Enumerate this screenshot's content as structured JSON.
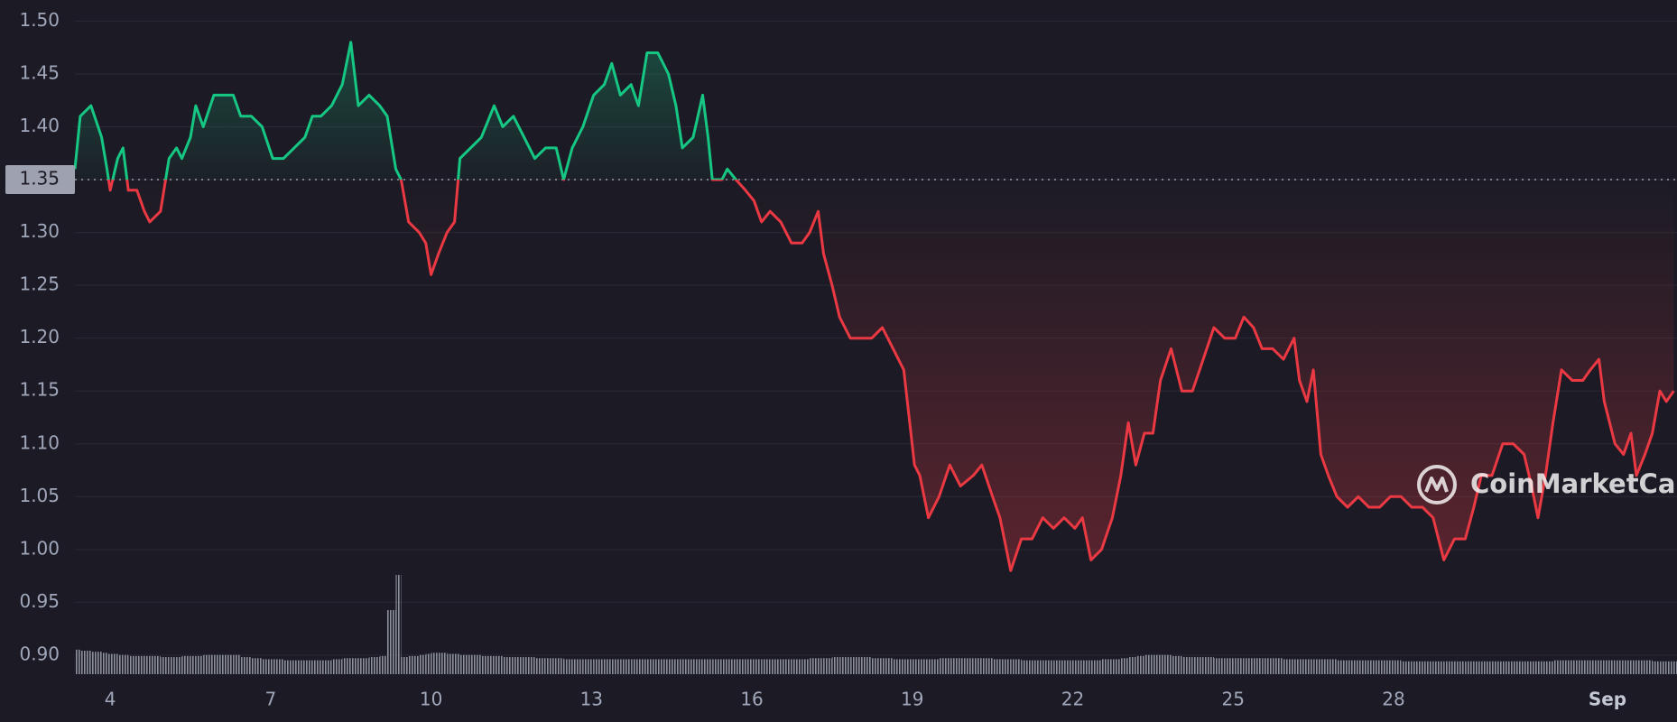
{
  "chart_data": {
    "type": "line",
    "x": [
      3.34,
      3.44,
      3.64,
      3.84,
      3.94,
      4.0,
      4.14,
      4.24,
      4.34,
      4.5,
      4.64,
      4.74,
      4.94,
      5.1,
      5.24,
      5.34,
      5.5,
      5.6,
      5.74,
      5.94,
      6.14,
      6.3,
      6.44,
      6.64,
      6.84,
      7.04,
      7.24,
      7.44,
      7.64,
      7.78,
      7.94,
      8.14,
      8.34,
      8.5,
      8.64,
      8.84,
      9.04,
      9.18,
      9.34,
      9.44,
      9.58,
      9.78,
      9.9,
      10.0,
      10.14,
      10.3,
      10.44,
      10.54,
      10.74,
      10.94,
      11.18,
      11.34,
      11.54,
      11.74,
      11.94,
      12.14,
      12.34,
      12.48,
      12.64,
      12.84,
      13.04,
      13.24,
      13.38,
      13.54,
      13.74,
      13.88,
      14.04,
      14.24,
      14.44,
      14.58,
      14.7,
      14.9,
      15.08,
      15.18,
      15.26,
      15.44,
      15.54,
      15.7,
      15.88,
      16.04,
      16.18,
      16.34,
      16.54,
      16.74,
      16.94,
      17.08,
      17.24,
      17.34,
      17.5,
      17.64,
      17.84,
      18.04,
      18.24,
      18.44,
      18.64,
      18.84,
      19.04,
      19.14,
      19.3,
      19.5,
      19.7,
      19.9,
      20.14,
      20.3,
      20.5,
      20.64,
      20.84,
      21.04,
      21.24,
      21.44,
      21.64,
      21.84,
      22.04,
      22.18,
      22.34,
      22.54,
      22.74,
      22.9,
      23.04,
      23.18,
      23.34,
      23.5,
      23.64,
      23.84,
      24.04,
      24.24,
      24.44,
      24.64,
      24.84,
      25.04,
      25.2,
      25.38,
      25.54,
      25.74,
      25.94,
      26.14,
      26.24,
      26.38,
      26.5,
      26.64,
      26.78,
      26.94,
      27.14,
      27.34,
      27.54,
      27.74,
      27.94,
      28.14,
      28.34,
      28.54,
      28.74,
      28.94,
      29.14,
      29.34,
      29.5,
      29.64,
      29.84,
      30.04,
      30.24,
      30.44,
      30.58,
      30.7,
      30.84,
      30.98,
      31.14,
      31.34,
      31.54,
      31.68,
      31.84,
      31.94,
      32.14,
      32.3,
      32.44,
      32.54,
      32.7,
      32.84,
      32.98,
      33.1,
      33.24
    ],
    "values": [
      1.36,
      1.41,
      1.42,
      1.39,
      1.36,
      1.34,
      1.37,
      1.38,
      1.34,
      1.34,
      1.32,
      1.31,
      1.32,
      1.37,
      1.38,
      1.37,
      1.39,
      1.42,
      1.4,
      1.43,
      1.43,
      1.43,
      1.41,
      1.41,
      1.4,
      1.37,
      1.37,
      1.38,
      1.39,
      1.41,
      1.41,
      1.42,
      1.44,
      1.48,
      1.42,
      1.43,
      1.42,
      1.41,
      1.36,
      1.35,
      1.31,
      1.3,
      1.29,
      1.26,
      1.28,
      1.3,
      1.31,
      1.37,
      1.38,
      1.39,
      1.42,
      1.4,
      1.41,
      1.39,
      1.37,
      1.38,
      1.38,
      1.35,
      1.38,
      1.4,
      1.43,
      1.44,
      1.46,
      1.43,
      1.44,
      1.42,
      1.47,
      1.47,
      1.45,
      1.42,
      1.38,
      1.39,
      1.43,
      1.39,
      1.35,
      1.35,
      1.36,
      1.35,
      1.34,
      1.33,
      1.31,
      1.32,
      1.31,
      1.29,
      1.29,
      1.3,
      1.32,
      1.28,
      1.25,
      1.22,
      1.2,
      1.2,
      1.2,
      1.21,
      1.19,
      1.17,
      1.08,
      1.07,
      1.03,
      1.05,
      1.08,
      1.06,
      1.07,
      1.08,
      1.05,
      1.03,
      0.98,
      1.01,
      1.01,
      1.03,
      1.02,
      1.03,
      1.02,
      1.03,
      0.99,
      1.0,
      1.03,
      1.07,
      1.12,
      1.08,
      1.11,
      1.11,
      1.16,
      1.19,
      1.15,
      1.15,
      1.18,
      1.21,
      1.2,
      1.2,
      1.22,
      1.21,
      1.19,
      1.19,
      1.18,
      1.2,
      1.16,
      1.14,
      1.17,
      1.09,
      1.07,
      1.05,
      1.04,
      1.05,
      1.04,
      1.04,
      1.05,
      1.05,
      1.04,
      1.04,
      1.03,
      0.99,
      1.01,
      1.01,
      1.04,
      1.07,
      1.07,
      1.1,
      1.1,
      1.09,
      1.06,
      1.03,
      1.07,
      1.12,
      1.17,
      1.16,
      1.16,
      1.17,
      1.18,
      1.14,
      1.1,
      1.09,
      1.11,
      1.07,
      1.09,
      1.11,
      1.15,
      1.14,
      1.15
    ],
    "volume": [
      23,
      22,
      21,
      20,
      19,
      19,
      18,
      18,
      17,
      17,
      17,
      17,
      16,
      16,
      16,
      17,
      17,
      17,
      18,
      18,
      18,
      18,
      16,
      15,
      14,
      14,
      13,
      13,
      13,
      13,
      13,
      14,
      15,
      15,
      15,
      16,
      17,
      60,
      93,
      16,
      17,
      18,
      19,
      20,
      20,
      19,
      19,
      18,
      18,
      17,
      17,
      16,
      16,
      16,
      15,
      15,
      15,
      14,
      14,
      14,
      14,
      14,
      14,
      14,
      14,
      14,
      14,
      14,
      14,
      14,
      14,
      14,
      14,
      14,
      14,
      14,
      14,
      14,
      14,
      14,
      14,
      14,
      14,
      14,
      14,
      15,
      15,
      15,
      16,
      16,
      16,
      16,
      15,
      15,
      14,
      14,
      14,
      14,
      14,
      15,
      15,
      15,
      15,
      15,
      14,
      14,
      14,
      13,
      13,
      13,
      13,
      13,
      13,
      13,
      13,
      14,
      14,
      15,
      16,
      17,
      18,
      18,
      18,
      17,
      16,
      16,
      16,
      15,
      15,
      15,
      15,
      15,
      15,
      15,
      14,
      14,
      14,
      14,
      14,
      14,
      14,
      13,
      13,
      13,
      13,
      13,
      13,
      12,
      12,
      12,
      12,
      12,
      12,
      12,
      12,
      12,
      12,
      12,
      12,
      12,
      12,
      12,
      12,
      13,
      13,
      13,
      13,
      13,
      13,
      13,
      13,
      13,
      13,
      13,
      13,
      12,
      12,
      12,
      12
    ],
    "baseline": 1.35,
    "up_color": "#16c784",
    "down_color": "#ea3943",
    "xlim": [
      3.34,
      33.3
    ],
    "xticks": [
      4,
      7,
      10,
      13,
      16,
      19,
      22,
      25,
      28,
      {
        "value": 32,
        "label": "Sep"
      }
    ],
    "ylim": [
      0.882,
      1.52
    ],
    "yticks": [
      {
        "value": 0.9,
        "label": "0.90"
      },
      0.95,
      {
        "value": 1.0,
        "label": "1.00"
      },
      1.05,
      {
        "value": 1.1,
        "label": "1.10"
      },
      1.15,
      {
        "value": 1.2,
        "label": "1.20"
      },
      1.25,
      {
        "value": 1.3,
        "label": "1.30"
      },
      1.35,
      {
        "value": 1.4,
        "label": "1.40"
      },
      1.45,
      {
        "value": 1.5,
        "label": "1.50"
      }
    ],
    "grid": true,
    "watermark": "CoinMarketCap"
  }
}
